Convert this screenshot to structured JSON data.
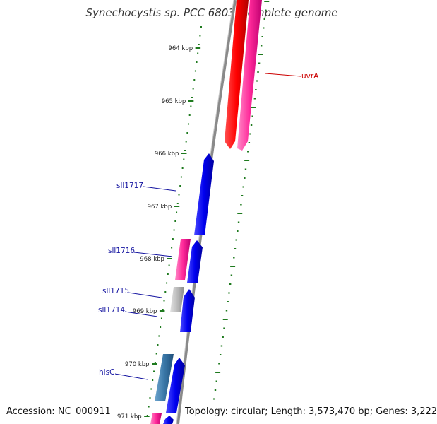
{
  "title": "Synechocystis sp. PCC 6803, complete genome",
  "footer": {
    "accession_label": "Accession:",
    "accession": "NC_000911",
    "topology_text": "Topology: circular; Length: 3,573,470 bp; Genes: 3,222"
  },
  "colors": {
    "backbone": "#8a8a8a",
    "ticks": "#1e7a1e",
    "label_blue": "#1414a0",
    "label_red": "#cc0000",
    "gene_red": "#ff0000",
    "gene_pink": "#ff2a9a",
    "gene_blue": "#0000ee",
    "gene_gray": "#bbbbbb",
    "gene_steel": "#3a78a8"
  },
  "ticks": [
    {
      "label": "964 kbp"
    },
    {
      "label": "965 kbp"
    },
    {
      "label": "966 kbp"
    },
    {
      "label": "967 kbp"
    },
    {
      "label": "968 kbp"
    },
    {
      "label": "969 kbp"
    },
    {
      "label": "970 kbp"
    },
    {
      "label": "971 kbp"
    }
  ],
  "gene_labels": [
    {
      "name": "uvrA",
      "color": "#cc0000"
    },
    {
      "name": "sll1717",
      "color": "#1414a0"
    },
    {
      "name": "sll1716",
      "color": "#1414a0"
    },
    {
      "name": "sll1715",
      "color": "#1414a0"
    },
    {
      "name": "sll1714",
      "color": "#1414a0"
    },
    {
      "name": "hisC",
      "color": "#1414a0"
    }
  ]
}
